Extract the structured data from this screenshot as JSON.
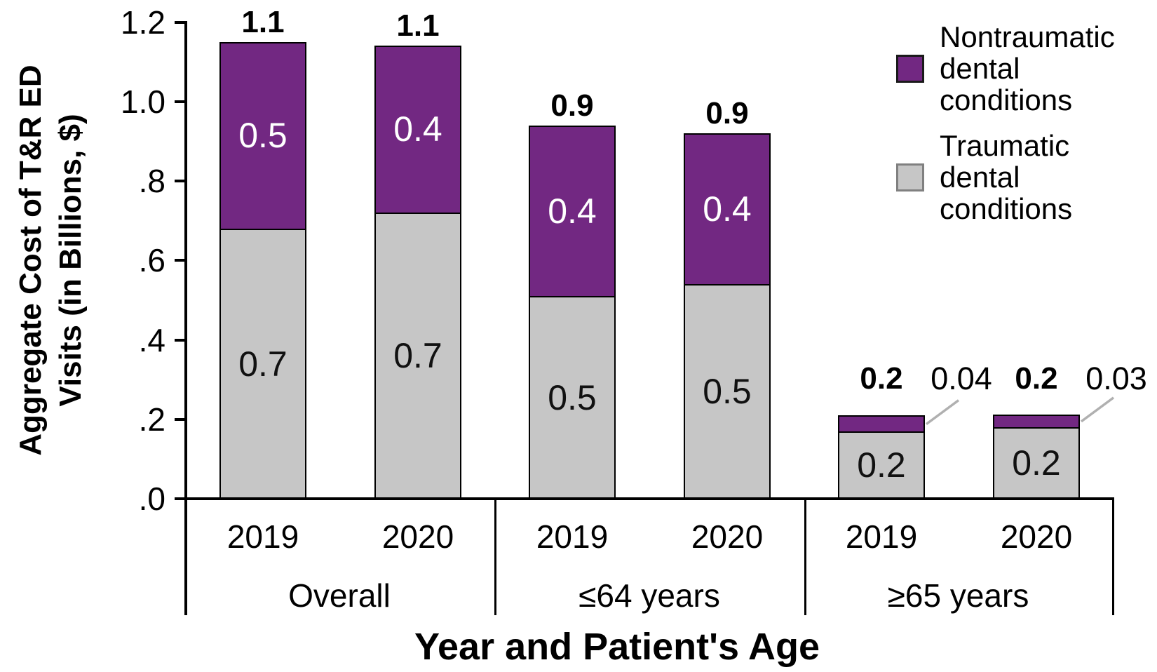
{
  "figure": {
    "background": "#ffffff"
  },
  "y_axis": {
    "title_line1": "Aggregate Cost of T&R ED",
    "title_line2": "Visits (in Billions, $)",
    "ticks": [
      {
        "label": ".0",
        "value": 0.0
      },
      {
        "label": ".2",
        "value": 0.2
      },
      {
        "label": ".4",
        "value": 0.4
      },
      {
        "label": ".6",
        "value": 0.6
      },
      {
        "label": ".8",
        "value": 0.8
      },
      {
        "label": "1.0",
        "value": 1.0
      },
      {
        "label": "1.2",
        "value": 1.2
      }
    ]
  },
  "x_axis": {
    "title": "Year and Patient's Age"
  },
  "legend": {
    "items": [
      {
        "line1": "Nontraumatic",
        "line2": "dental conditions",
        "color": "#722882",
        "border": "#1a1a1a"
      },
      {
        "line1": "Traumatic",
        "line2": "dental conditions",
        "color": "#c6c6c6",
        "border": "#808080"
      }
    ]
  },
  "chart_data": {
    "type": "bar",
    "stacked": true,
    "title": "",
    "xlabel": "Year and Patient's Age",
    "ylabel": "Aggregate Cost of T&R ED Visits (in Billions, $)",
    "ylim": [
      0,
      1.2
    ],
    "yticks": [
      ".0",
      ".2",
      ".4",
      ".6",
      ".8",
      "1.0",
      "1.2"
    ],
    "grid": false,
    "legend_position": "upper right",
    "groups": [
      "Overall",
      "≤64 years",
      "≥65 years"
    ],
    "series_names": [
      "Traumatic dental conditions",
      "Nontraumatic dental conditions"
    ],
    "colors": {
      "traumatic": "#c6c6c6",
      "nontraumatic": "#722882"
    },
    "bars": [
      {
        "group": "Overall",
        "year": "2019",
        "traumatic": 0.68,
        "nontraumatic": 0.47,
        "traumatic_label": "0.7",
        "nontraumatic_label": "0.5",
        "total_label": "1.1"
      },
      {
        "group": "Overall",
        "year": "2020",
        "traumatic": 0.72,
        "nontraumatic": 0.42,
        "traumatic_label": "0.7",
        "nontraumatic_label": "0.4",
        "total_label": "1.1"
      },
      {
        "group": "≤64 years",
        "year": "2019",
        "traumatic": 0.51,
        "nontraumatic": 0.43,
        "traumatic_label": "0.5",
        "nontraumatic_label": "0.4",
        "total_label": "0.9"
      },
      {
        "group": "≤64 years",
        "year": "2020",
        "traumatic": 0.54,
        "nontraumatic": 0.38,
        "traumatic_label": "0.5",
        "nontraumatic_label": "0.4",
        "total_label": "0.9"
      },
      {
        "group": "≥65 years",
        "year": "2019",
        "traumatic": 0.17,
        "nontraumatic": 0.04,
        "traumatic_label": "0.2",
        "nontraumatic_callout": "0.04",
        "total_label": "0.2"
      },
      {
        "group": "≥65 years",
        "year": "2020",
        "traumatic": 0.18,
        "nontraumatic": 0.03,
        "traumatic_label": "0.2",
        "nontraumatic_callout": "0.03",
        "total_label": "0.2"
      }
    ]
  }
}
